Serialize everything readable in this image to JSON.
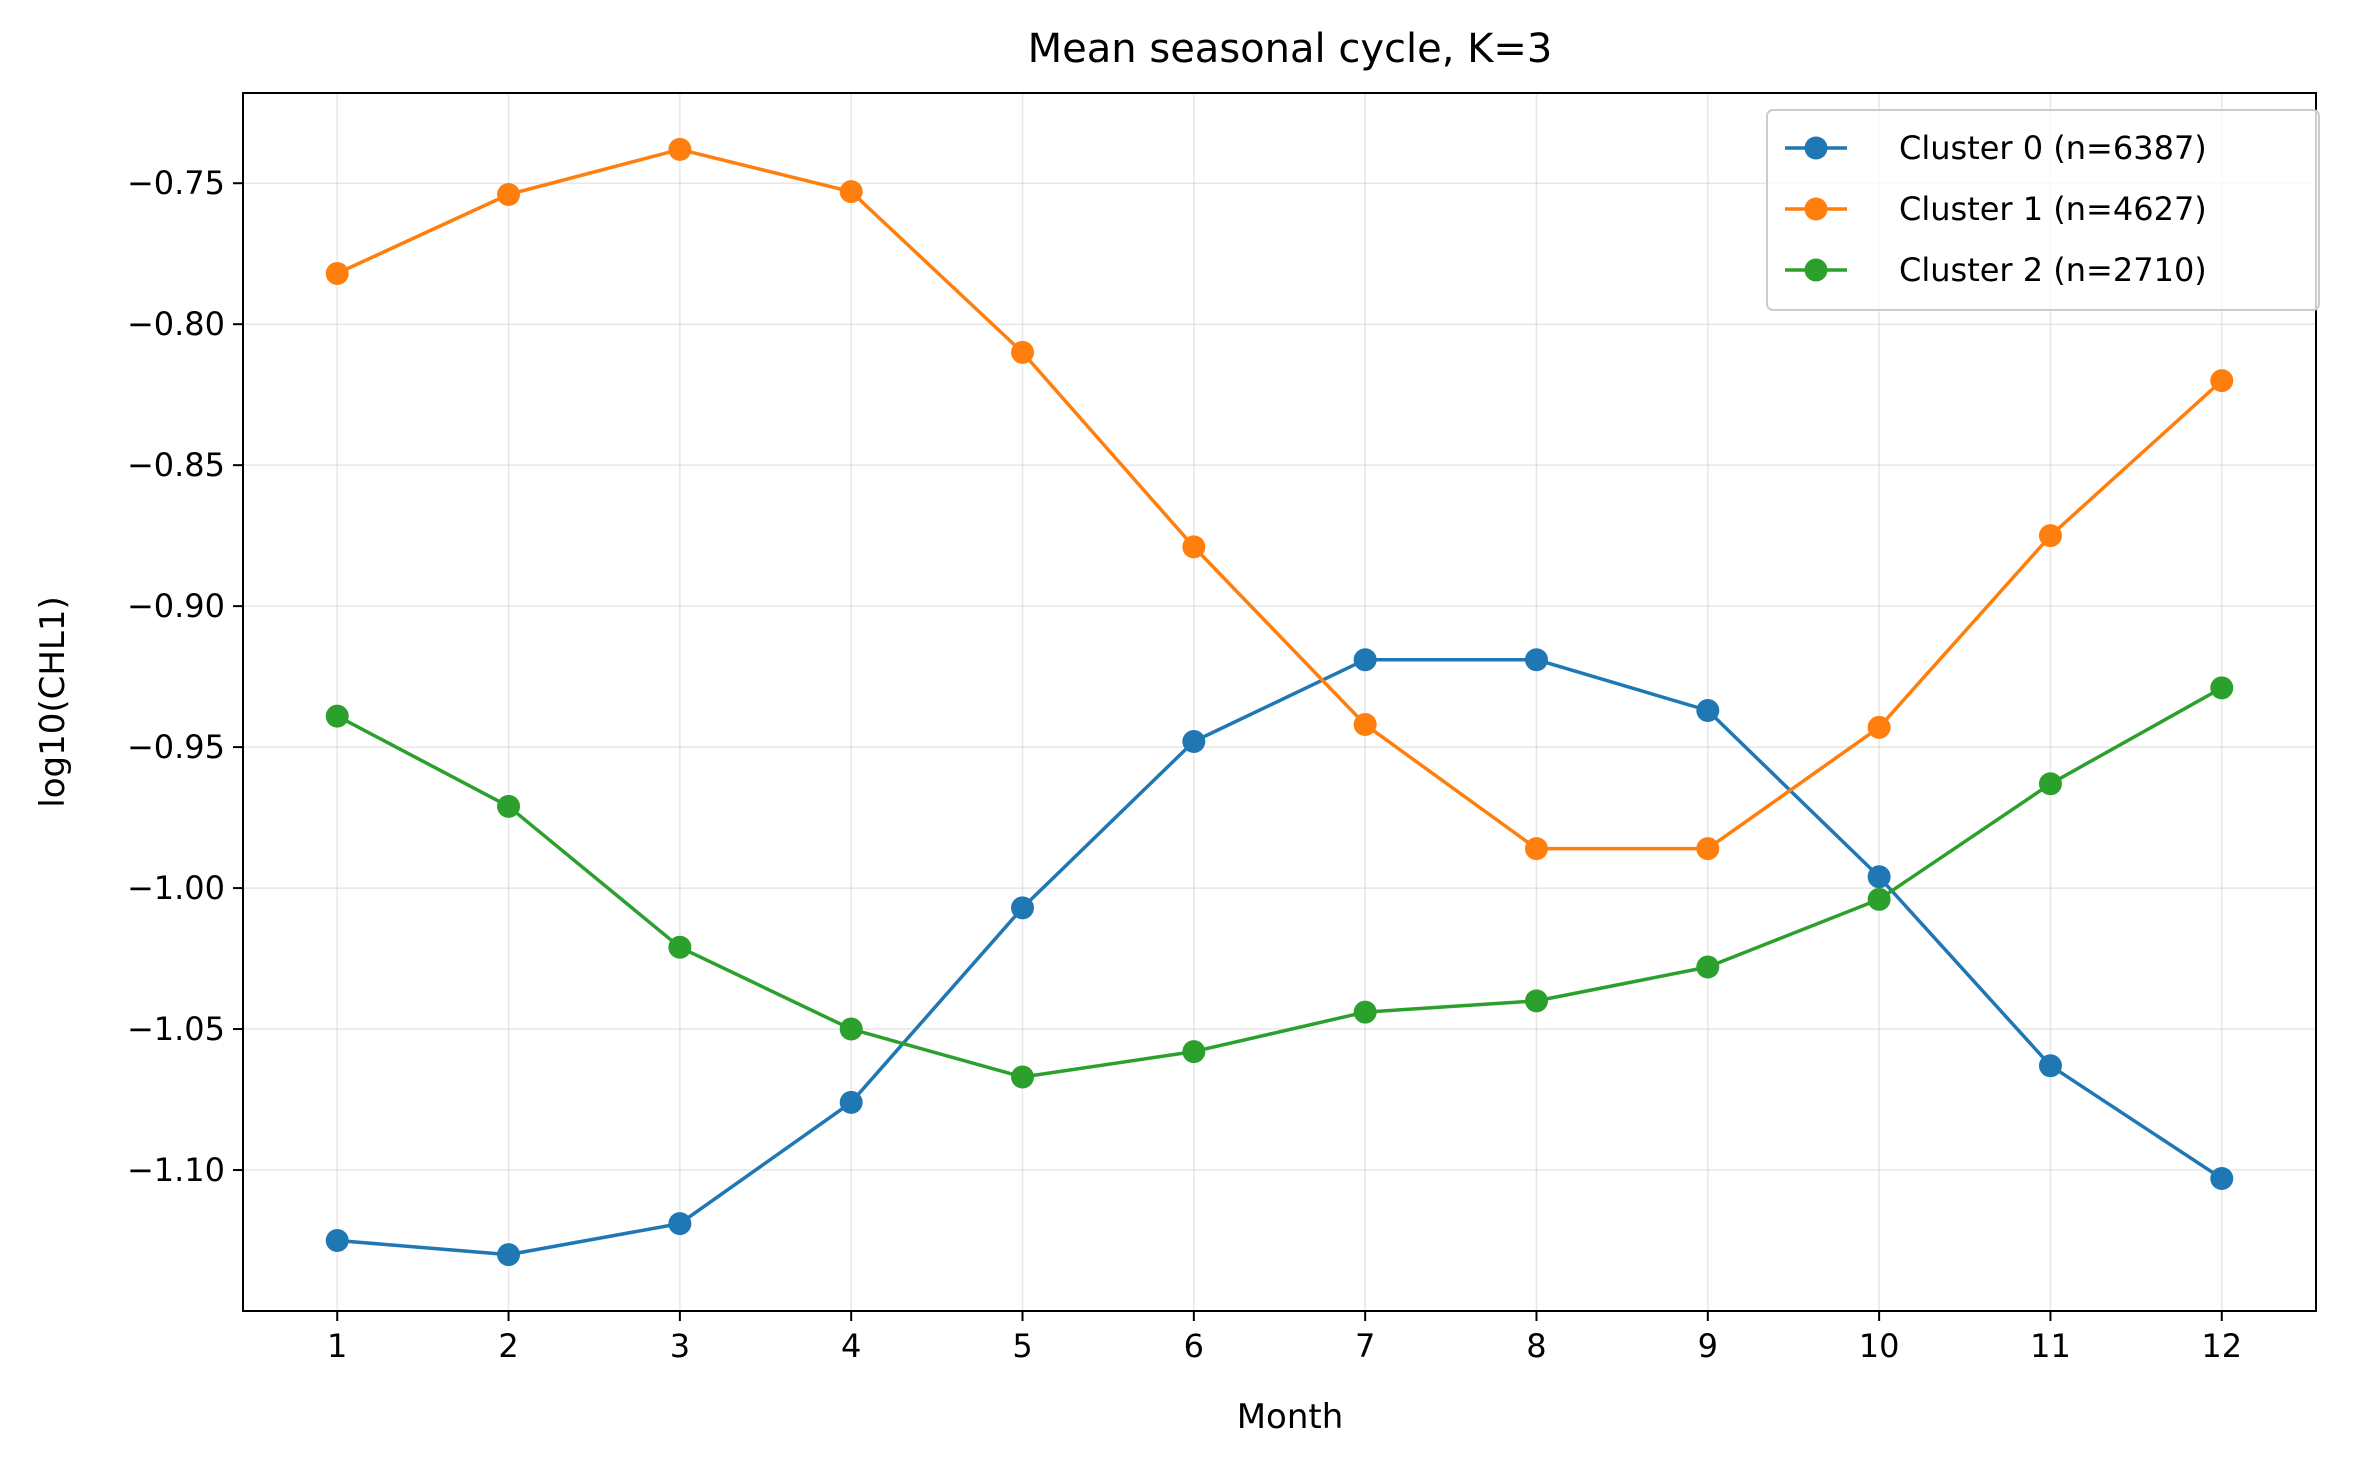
{
  "chart_data": {
    "type": "line",
    "title": "Mean seasonal cycle, K=3",
    "xlabel": "Month",
    "ylabel": "log10(CHL1)",
    "x": [
      1,
      2,
      3,
      4,
      5,
      6,
      7,
      8,
      9,
      10,
      11,
      12
    ],
    "x_tick_labels": [
      "1",
      "2",
      "3",
      "4",
      "5",
      "6",
      "7",
      "8",
      "9",
      "10",
      "11",
      "12"
    ],
    "xlim": [
      0.45,
      12.55
    ],
    "ylim": [
      -1.15,
      -0.718
    ],
    "y_ticks": [
      -1.1,
      -1.05,
      -1.0,
      -0.95,
      -0.9,
      -0.85,
      -0.8,
      -0.75
    ],
    "y_tick_labels": [
      "−1.10",
      "−1.05",
      "−1.00",
      "−0.95",
      "−0.90",
      "−0.85",
      "−0.80",
      "−0.75"
    ],
    "grid": true,
    "legend_position": "top-right",
    "series": [
      {
        "name": "Cluster 0 (n=6387)",
        "color": "#1f77b4",
        "values": [
          -1.125,
          -1.13,
          -1.119,
          -1.076,
          -1.007,
          -0.948,
          -0.919,
          -0.919,
          -0.937,
          -0.996,
          -1.063,
          -1.103
        ]
      },
      {
        "name": "Cluster 1 (n=4627)",
        "color": "#ff7f0e",
        "values": [
          -0.782,
          -0.754,
          -0.738,
          -0.753,
          -0.81,
          -0.879,
          -0.942,
          -0.986,
          -0.986,
          -0.943,
          -0.875,
          -0.82
        ]
      },
      {
        "name": "Cluster 2 (n=2710)",
        "color": "#2ca02c",
        "values": [
          -0.939,
          -0.971,
          -1.021,
          -1.05,
          -1.067,
          -1.058,
          -1.044,
          -1.04,
          -1.028,
          -1.004,
          -0.963,
          -0.929
        ]
      }
    ]
  }
}
